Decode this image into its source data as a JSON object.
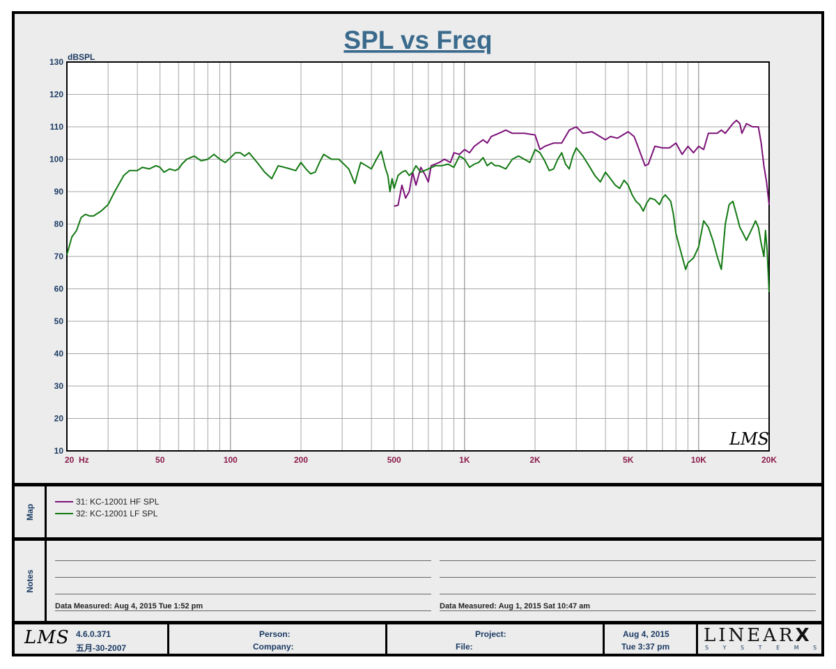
{
  "chart_data": {
    "type": "line",
    "title": "SPL vs Freq",
    "ylabel": "dBSPL",
    "xlabel": "",
    "xscale": "log",
    "xlim": [
      20,
      20000
    ],
    "ylim": [
      10,
      130
    ],
    "grid": true,
    "yticks": [
      130,
      120,
      110,
      100,
      90,
      80,
      70,
      60,
      50,
      40,
      30,
      20,
      10
    ],
    "xtick_labels": [
      {
        "value": 20,
        "label": "20  Hz"
      },
      {
        "value": 50,
        "label": "50"
      },
      {
        "value": 100,
        "label": "100"
      },
      {
        "value": 200,
        "label": "200"
      },
      {
        "value": 500,
        "label": "500"
      },
      {
        "value": 1000,
        "label": "1K"
      },
      {
        "value": 2000,
        "label": "2K"
      },
      {
        "value": 5000,
        "label": "5K"
      },
      {
        "value": 10000,
        "label": "10K"
      },
      {
        "value": 20000,
        "label": "20K"
      }
    ],
    "watermark": "LMS",
    "series": [
      {
        "name": "31: KC-12001 HF SPL",
        "color": "#7b1077",
        "points": [
          [
            500,
            85.5
          ],
          [
            520,
            85.8
          ],
          [
            540,
            92
          ],
          [
            560,
            88
          ],
          [
            580,
            90
          ],
          [
            600,
            96
          ],
          [
            620,
            92
          ],
          [
            650,
            97.5
          ],
          [
            680,
            95
          ],
          [
            700,
            93
          ],
          [
            720,
            98
          ],
          [
            780,
            99
          ],
          [
            820,
            100
          ],
          [
            870,
            99
          ],
          [
            900,
            102
          ],
          [
            950,
            101.5
          ],
          [
            1000,
            103
          ],
          [
            1050,
            102
          ],
          [
            1100,
            104
          ],
          [
            1200,
            106
          ],
          [
            1250,
            105
          ],
          [
            1300,
            107
          ],
          [
            1400,
            108
          ],
          [
            1500,
            109
          ],
          [
            1600,
            108
          ],
          [
            1800,
            108
          ],
          [
            2000,
            107.5
          ],
          [
            2100,
            103
          ],
          [
            2200,
            104
          ],
          [
            2400,
            105
          ],
          [
            2600,
            105
          ],
          [
            2800,
            109
          ],
          [
            3000,
            110
          ],
          [
            3200,
            108
          ],
          [
            3500,
            108.5
          ],
          [
            4000,
            106
          ],
          [
            4200,
            107
          ],
          [
            4500,
            106.5
          ],
          [
            5000,
            108.5
          ],
          [
            5300,
            107
          ],
          [
            5500,
            104
          ],
          [
            5900,
            98
          ],
          [
            6100,
            98.5
          ],
          [
            6500,
            104
          ],
          [
            7000,
            103.5
          ],
          [
            7500,
            103.5
          ],
          [
            8000,
            105
          ],
          [
            8500,
            101.5
          ],
          [
            9000,
            104
          ],
          [
            9500,
            102
          ],
          [
            10000,
            104
          ],
          [
            10500,
            103
          ],
          [
            11000,
            108
          ],
          [
            12000,
            108
          ],
          [
            12500,
            109
          ],
          [
            13000,
            108
          ],
          [
            14000,
            111
          ],
          [
            14500,
            112
          ],
          [
            15000,
            111
          ],
          [
            15300,
            108
          ],
          [
            16000,
            111
          ],
          [
            17000,
            110
          ],
          [
            18000,
            110
          ],
          [
            18500,
            105
          ],
          [
            19000,
            98
          ],
          [
            19500,
            93
          ],
          [
            20000,
            86
          ]
        ]
      },
      {
        "name": "32: KC-12001 LF SPL",
        "color": "#117811",
        "points": [
          [
            20,
            70.5
          ],
          [
            21,
            76
          ],
          [
            22,
            78
          ],
          [
            23,
            82
          ],
          [
            24,
            83
          ],
          [
            25,
            82.5
          ],
          [
            26,
            82.5
          ],
          [
            28,
            84
          ],
          [
            30,
            86
          ],
          [
            32,
            90
          ],
          [
            35,
            95
          ],
          [
            37,
            96.5
          ],
          [
            40,
            96.5
          ],
          [
            42,
            97.5
          ],
          [
            45,
            97
          ],
          [
            48,
            98
          ],
          [
            50,
            97.5
          ],
          [
            52,
            96
          ],
          [
            55,
            97
          ],
          [
            58,
            96.5
          ],
          [
            60,
            97
          ],
          [
            62,
            98.5
          ],
          [
            65,
            100
          ],
          [
            70,
            101
          ],
          [
            75,
            99.5
          ],
          [
            80,
            100
          ],
          [
            85,
            101.5
          ],
          [
            90,
            100
          ],
          [
            95,
            99
          ],
          [
            100,
            100.5
          ],
          [
            105,
            102
          ],
          [
            110,
            102
          ],
          [
            115,
            101
          ],
          [
            120,
            102
          ],
          [
            130,
            99
          ],
          [
            140,
            96
          ],
          [
            150,
            94
          ],
          [
            160,
            98
          ],
          [
            180,
            97
          ],
          [
            190,
            96.5
          ],
          [
            200,
            99
          ],
          [
            210,
            97
          ],
          [
            220,
            95.5
          ],
          [
            230,
            96
          ],
          [
            240,
            99
          ],
          [
            250,
            101.5
          ],
          [
            270,
            100
          ],
          [
            290,
            100
          ],
          [
            300,
            99
          ],
          [
            320,
            97
          ],
          [
            340,
            92.5
          ],
          [
            350,
            96
          ],
          [
            360,
            99
          ],
          [
            380,
            98
          ],
          [
            400,
            97
          ],
          [
            420,
            100
          ],
          [
            440,
            102.5
          ],
          [
            460,
            97
          ],
          [
            470,
            95
          ],
          [
            480,
            90
          ],
          [
            490,
            94
          ],
          [
            500,
            91
          ],
          [
            520,
            95
          ],
          [
            540,
            96
          ],
          [
            560,
            96.5
          ],
          [
            580,
            95
          ],
          [
            600,
            96
          ],
          [
            620,
            98
          ],
          [
            650,
            96
          ],
          [
            700,
            97
          ],
          [
            750,
            98
          ],
          [
            800,
            98
          ],
          [
            850,
            98.5
          ],
          [
            900,
            97.5
          ],
          [
            950,
            101
          ],
          [
            1000,
            100
          ],
          [
            1050,
            97.5
          ],
          [
            1100,
            98.5
          ],
          [
            1150,
            99
          ],
          [
            1200,
            100.5
          ],
          [
            1250,
            98
          ],
          [
            1300,
            99
          ],
          [
            1350,
            98
          ],
          [
            1400,
            98
          ],
          [
            1500,
            97
          ],
          [
            1600,
            100
          ],
          [
            1700,
            101
          ],
          [
            1800,
            100
          ],
          [
            1900,
            99
          ],
          [
            2000,
            103
          ],
          [
            2100,
            102
          ],
          [
            2200,
            99.5
          ],
          [
            2300,
            96.5
          ],
          [
            2400,
            97
          ],
          [
            2500,
            100
          ],
          [
            2600,
            102
          ],
          [
            2700,
            98.5
          ],
          [
            2800,
            97
          ],
          [
            2900,
            101
          ],
          [
            3000,
            103.5
          ],
          [
            3200,
            101
          ],
          [
            3400,
            98
          ],
          [
            3600,
            95
          ],
          [
            3800,
            93
          ],
          [
            4000,
            96
          ],
          [
            4200,
            94
          ],
          [
            4400,
            92
          ],
          [
            4600,
            91
          ],
          [
            4800,
            93.5
          ],
          [
            5000,
            92
          ],
          [
            5200,
            89
          ],
          [
            5400,
            87
          ],
          [
            5600,
            86
          ],
          [
            5800,
            84
          ],
          [
            6000,
            86.5
          ],
          [
            6200,
            88
          ],
          [
            6500,
            87.5
          ],
          [
            6800,
            86
          ],
          [
            7000,
            88
          ],
          [
            7200,
            89
          ],
          [
            7400,
            88
          ],
          [
            7600,
            87
          ],
          [
            7800,
            83
          ],
          [
            8000,
            77
          ],
          [
            8500,
            70
          ],
          [
            8800,
            66
          ],
          [
            9000,
            68
          ],
          [
            9500,
            69.5
          ],
          [
            10000,
            73
          ],
          [
            10500,
            81
          ],
          [
            11000,
            79
          ],
          [
            11500,
            75
          ],
          [
            12000,
            70
          ],
          [
            12500,
            66
          ],
          [
            13000,
            80
          ],
          [
            13500,
            86
          ],
          [
            14000,
            87
          ],
          [
            14500,
            83
          ],
          [
            15000,
            79
          ],
          [
            15500,
            77
          ],
          [
            16000,
            75
          ],
          [
            17000,
            79
          ],
          [
            17500,
            81
          ],
          [
            18000,
            79
          ],
          [
            18500,
            74
          ],
          [
            19000,
            70
          ],
          [
            19300,
            78
          ],
          [
            19600,
            72
          ],
          [
            20000,
            59
          ]
        ]
      }
    ]
  },
  "legend": {
    "panel_label": "Map",
    "items": [
      {
        "label": "31: KC-12001 HF SPL",
        "color": "#7b1077"
      },
      {
        "label": "32: KC-12001 LF SPL",
        "color": "#117811"
      }
    ]
  },
  "notes": {
    "panel_label": "Notes",
    "left_measured": "Data Measured: Aug  4, 2015  Tue  1:52 pm",
    "right_measured": "Data Measured: Aug  1, 2015  Sat 10:47 am"
  },
  "footer": {
    "logo_text": "LMS",
    "version": "4.6.0.371",
    "build_date": "五月-30-2007",
    "person_label": "Person:",
    "company_label": "Company:",
    "project_label": "Project:",
    "file_label": "File:",
    "date": "Aug  4, 2015",
    "time": "Tue  3:37 pm",
    "brand_main": "LINEAR",
    "brand_x": "X",
    "brand_sub": "S  Y  S  T  E  M  S"
  }
}
